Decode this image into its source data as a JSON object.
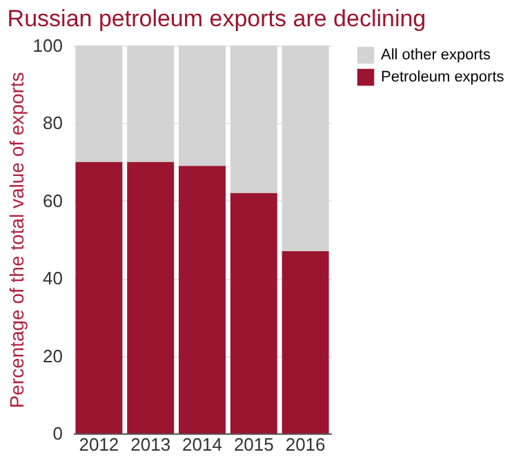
{
  "chart_data": {
    "type": "bar",
    "stacked": true,
    "title": "Russian petroleum exports are declining",
    "ylabel": "Percentage of the total value of exports",
    "categories": [
      "2012",
      "2013",
      "2014",
      "2015",
      "2016"
    ],
    "series": [
      {
        "name": "Petroleum exports",
        "color": "#9b1530",
        "values": [
          70,
          70,
          69,
          62,
          47
        ]
      },
      {
        "name": "All other exports",
        "color": "#d3d3d3",
        "values": [
          30,
          30,
          31,
          38,
          53
        ]
      }
    ],
    "ylim": [
      0,
      100
    ],
    "yticks": [
      0,
      20,
      40,
      60,
      80,
      100
    ],
    "grid": "y",
    "legend": "right"
  }
}
